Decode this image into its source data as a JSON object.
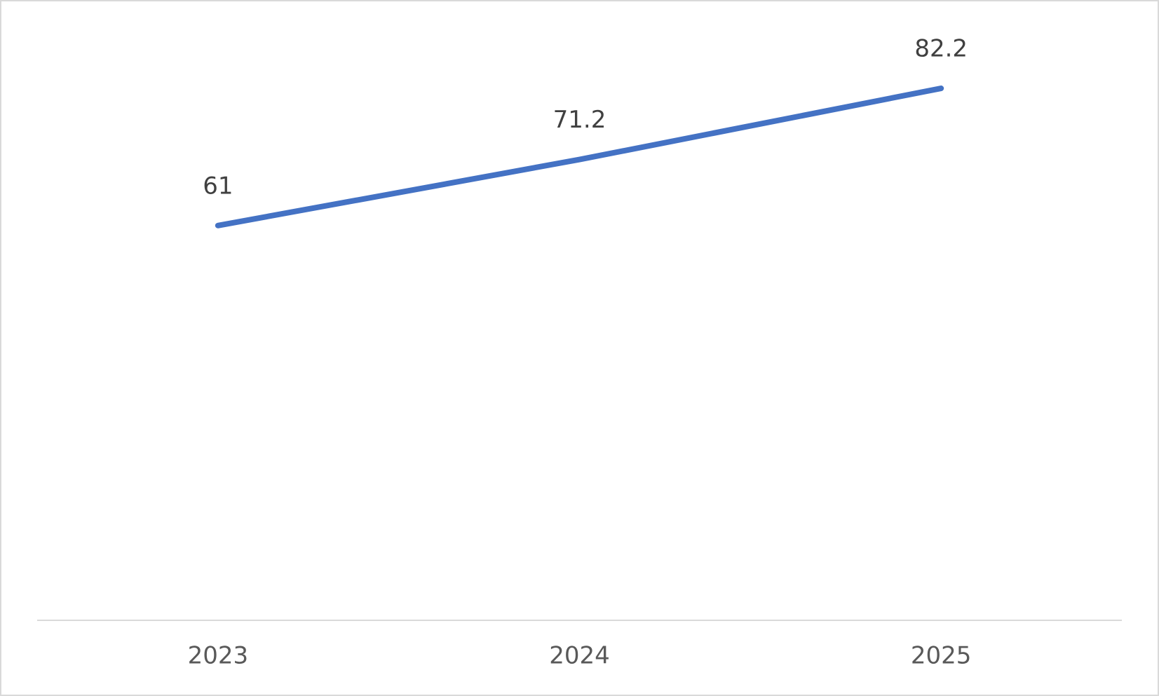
{
  "chart_data": {
    "type": "line",
    "categories": [
      "2023",
      "2024",
      "2025"
    ],
    "series": [
      {
        "color": "#4472c4",
        "values": [
          61,
          71.2,
          82.2
        ]
      }
    ],
    "ylim": [
      0,
      90
    ],
    "grid": false
  }
}
